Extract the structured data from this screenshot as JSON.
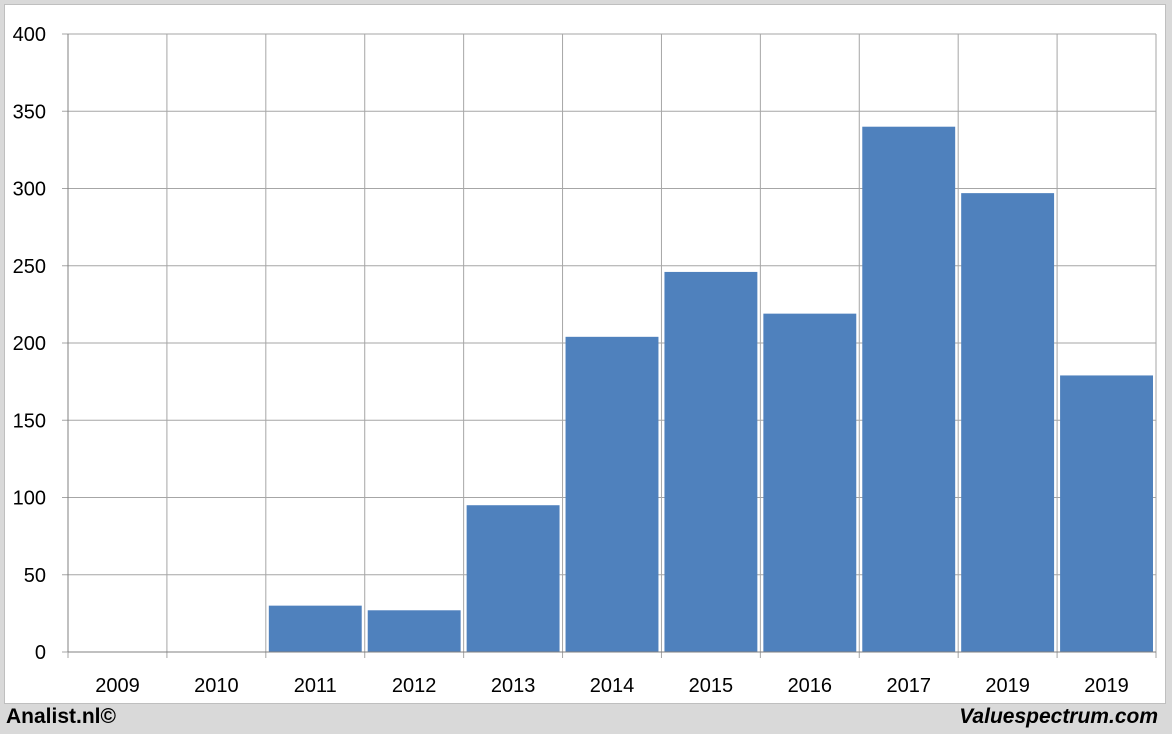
{
  "chart_data": {
    "type": "bar",
    "categories": [
      "2009",
      "2010",
      "2011",
      "2012",
      "2013",
      "2014",
      "2015",
      "2016",
      "2017",
      "2019",
      "2019"
    ],
    "values": [
      0,
      0,
      30,
      27,
      95,
      204,
      246,
      219,
      340,
      297,
      179
    ],
    "ylim": [
      0,
      400
    ],
    "yticks": [
      0,
      50,
      100,
      150,
      200,
      250,
      300,
      350,
      400
    ],
    "grid": true,
    "bar_color": "#4f81bd",
    "grid_color": "#a6a6a6"
  },
  "footer": {
    "left": "Analist.nl©",
    "right": "Valuespectrum.com"
  }
}
